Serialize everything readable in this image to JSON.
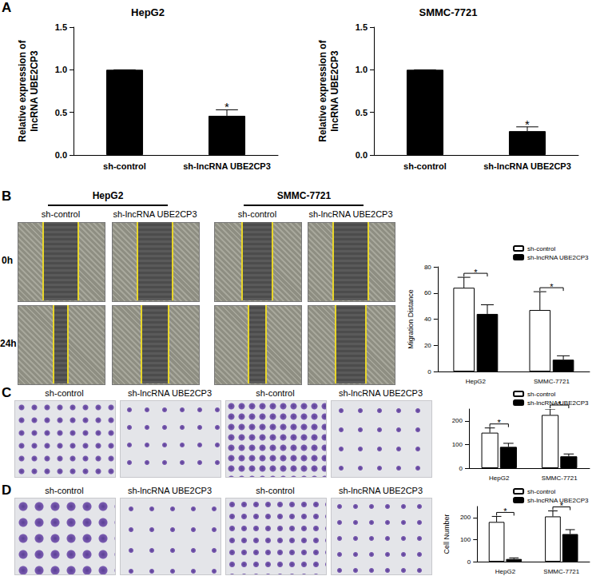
{
  "chart_data": [
    {
      "type": "bar",
      "title": "HepG2",
      "y_label": "Relative expression of\nlncRNA UBE2CP3",
      "categories": [
        "sh-control",
        "sh-lncRNA UBE2CP3"
      ],
      "values": [
        1.0,
        0.46
      ],
      "errors": [
        0,
        0.07
      ],
      "color": "#000000",
      "ylim": [
        0,
        1.5
      ],
      "yticks": [
        {
          "value": 0,
          "label": "0.0"
        },
        {
          "value": 0.5,
          "label": "0.5"
        },
        {
          "value": 1,
          "label": "1.0"
        },
        {
          "value": 1.5,
          "label": "1.5"
        }
      ],
      "grid": false,
      "annotations": [
        {
          "category": "sh-lncRNA UBE2CP3",
          "text": "*"
        }
      ]
    },
    {
      "type": "bar",
      "title": "SMMC-7721",
      "y_label": "Relative expression of\nlncRNA UBE2CP3",
      "categories": [
        "sh-control",
        "sh-lncRNA UBE2CP3"
      ],
      "values": [
        1.0,
        0.28
      ],
      "errors": [
        0,
        0.05
      ],
      "color": "#000000",
      "ylim": [
        0,
        1.5
      ],
      "yticks": [
        {
          "value": 0,
          "label": "0.0"
        },
        {
          "value": 0.5,
          "label": "0.5"
        },
        {
          "value": 1,
          "label": "1.0"
        },
        {
          "value": 1.5,
          "label": "1.5"
        }
      ],
      "grid": false,
      "annotations": [
        {
          "category": "sh-lncRNA UBE2CP3",
          "text": "*"
        }
      ]
    },
    {
      "type": "bar",
      "y_label": "Migration Distance",
      "categories": [
        "HepG2",
        "SMMC-7721"
      ],
      "series": [
        {
          "name": "sh-control",
          "color": "#ffffff",
          "values": [
            64,
            47
          ],
          "errors": [
            8,
            14
          ]
        },
        {
          "name": "sh-lncRNA UBE2CP3",
          "color": "#000000",
          "values": [
            44,
            9
          ],
          "errors": [
            7,
            3
          ]
        }
      ],
      "ylim": [
        0,
        80
      ],
      "yticks": [
        0,
        20,
        40,
        60,
        80
      ],
      "grid": false,
      "legend": "top-right",
      "annotations": [
        {
          "category": "HepG2",
          "text": "*"
        },
        {
          "category": "SMMC-7721",
          "text": "*"
        }
      ]
    },
    {
      "type": "bar",
      "categories": [
        "HepG2",
        "SMMC-7721"
      ],
      "series": [
        {
          "name": "sh-control",
          "color": "#ffffff",
          "values": [
            150,
            225
          ],
          "errors": [
            20,
            25
          ]
        },
        {
          "name": "sh-lncRNA UBE2CP3",
          "color": "#000000",
          "values": [
            90,
            50
          ],
          "errors": [
            15,
            10
          ]
        }
      ],
      "ylim": [
        0,
        250
      ],
      "yticks": [
        0,
        100,
        200
      ],
      "grid": false,
      "legend": "top-right",
      "annotations": [
        {
          "category": "HepG2",
          "text": "*"
        },
        {
          "category": "SMMC-7721",
          "text": "*"
        }
      ]
    },
    {
      "type": "bar",
      "y_label": "Cell Number",
      "categories": [
        "HepG2",
        "SMMC-7721"
      ],
      "series": [
        {
          "name": "sh-control",
          "color": "#ffffff",
          "values": [
            180,
            205
          ],
          "errors": [
            25,
            25
          ]
        },
        {
          "name": "sh-lncRNA UBE2CP3",
          "color": "#000000",
          "values": [
            12,
            125
          ],
          "errors": [
            5,
            20
          ]
        }
      ],
      "ylim": [
        0,
        250
      ],
      "yticks": [
        0,
        100,
        200
      ],
      "grid": false,
      "legend": "top-right",
      "annotations": [
        {
          "category": "HepG2",
          "text": "*"
        },
        {
          "category": "SMMC-7721",
          "text": "*"
        }
      ]
    }
  ],
  "figure": {
    "panel_labels": [
      "A",
      "B",
      "C",
      "D"
    ],
    "B": {
      "groups": [
        "HepG2",
        "SMMC-7721"
      ],
      "columns": [
        "sh-control",
        "sh-lncRNA UBE2CP3",
        "sh-control",
        "sh-lncRNA UBE2CP3"
      ],
      "rows": [
        "0h",
        "24h"
      ]
    },
    "C": {
      "columns": [
        "sh-control",
        "sh-lncRNA UBE2CP3",
        "sh-control",
        "sh-lncRNA UBE2CP3"
      ]
    },
    "D": {
      "columns": [
        "sh-control",
        "sh-lncRNA UBE2CP3",
        "sh-control",
        "sh-lncRNA UBE2CP3"
      ]
    }
  }
}
